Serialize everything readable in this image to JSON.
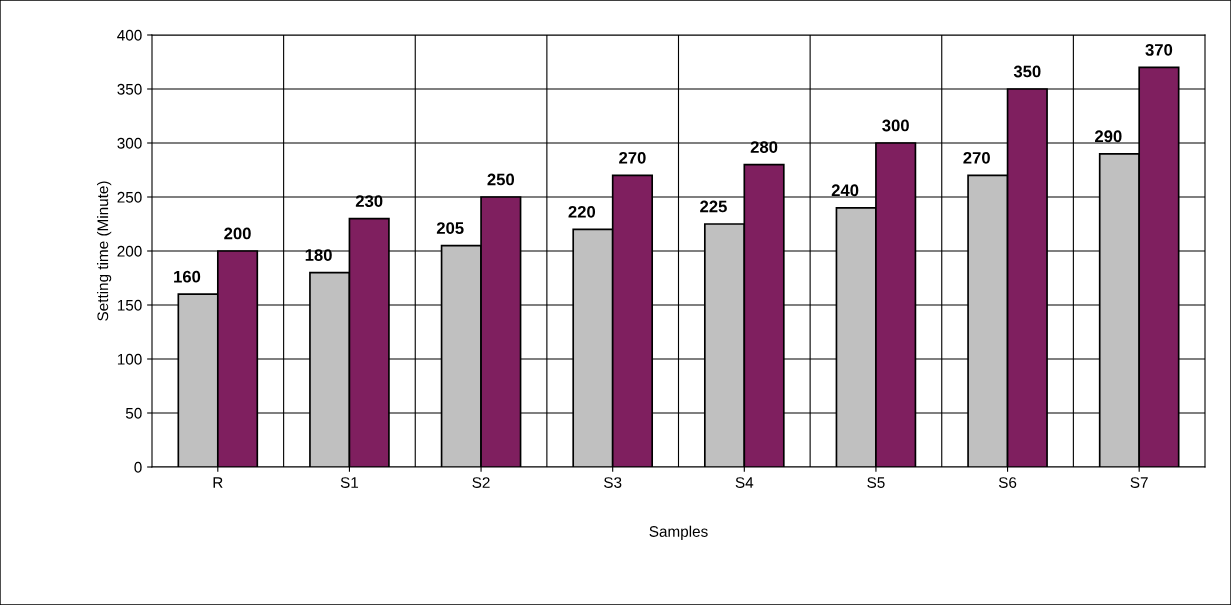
{
  "chart_data": {
    "type": "bar",
    "xlabel": "Samples",
    "ylabel": "Setting time (Minute)",
    "categories": [
      "R",
      "S1",
      "S2",
      "S3",
      "S4",
      "S5",
      "S6",
      "S7"
    ],
    "series": [
      {
        "color": "#c0c0c0",
        "values": [
          160,
          180,
          205,
          220,
          225,
          240,
          270,
          290
        ]
      },
      {
        "color": "#7f1f5f",
        "values": [
          200,
          230,
          250,
          270,
          280,
          300,
          350,
          370
        ]
      }
    ],
    "ylim": [
      0,
      400
    ],
    "yticks": [
      0,
      50,
      100,
      150,
      200,
      250,
      300,
      350,
      400
    ],
    "grid": true,
    "data_labels": true
  }
}
